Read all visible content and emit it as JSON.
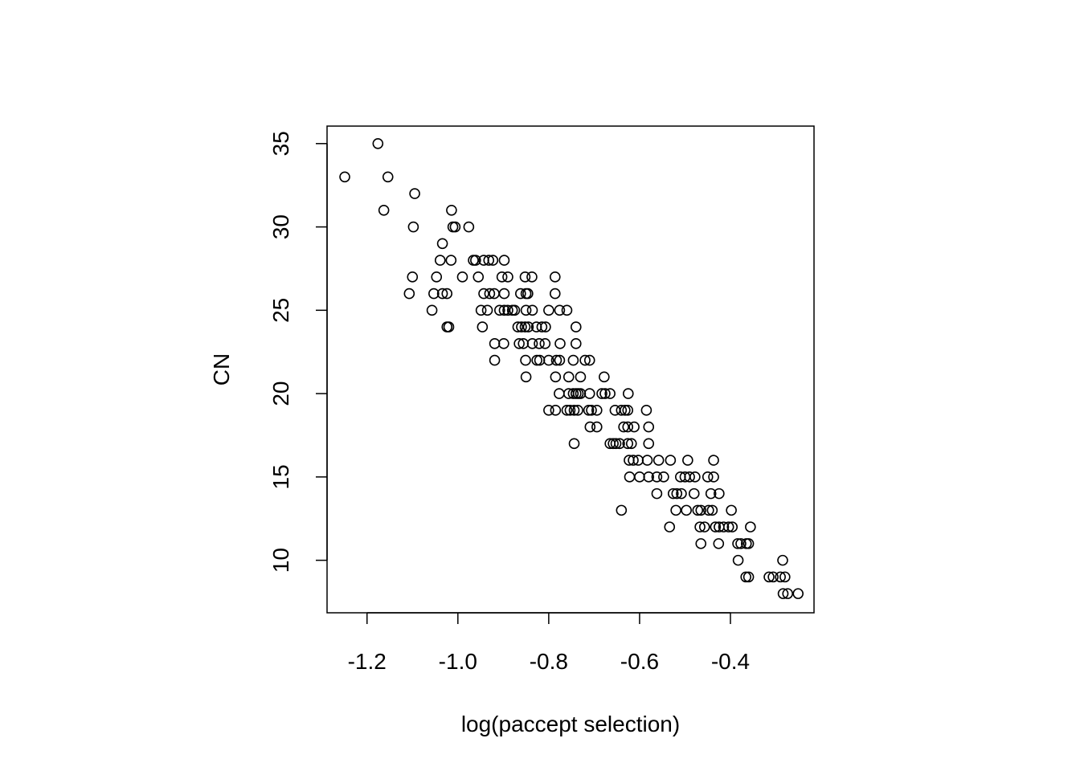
{
  "chart_data": {
    "type": "scatter",
    "title": "",
    "xlabel": "log(paccept selection)",
    "ylabel": "CN",
    "xlim": [
      -1.288,
      -0.216
    ],
    "ylim": [
      6.85,
      36.05
    ],
    "x_ticks": [
      -1.2,
      -1.0,
      -0.8,
      -0.6,
      -0.4
    ],
    "x_tick_labels": [
      "-1.2",
      "-1.0",
      "-0.8",
      "-0.6",
      "-0.4"
    ],
    "y_ticks": [
      10,
      15,
      20,
      25,
      30,
      35
    ],
    "y_tick_labels": [
      "10",
      "15",
      "20",
      "25",
      "30",
      "35"
    ],
    "grid": false,
    "marker": "open-circle",
    "marker_color": "#000000",
    "points": [
      [
        -1.249,
        33
      ],
      [
        -1.176,
        35
      ],
      [
        -1.163,
        31
      ],
      [
        -1.154,
        33
      ],
      [
        -1.095,
        32
      ],
      [
        -1.098,
        30
      ],
      [
        -1.014,
        31
      ],
      [
        -1.011,
        30
      ],
      [
        -1.006,
        30
      ],
      [
        -0.976,
        30
      ],
      [
        -1.034,
        29
      ],
      [
        -1.039,
        28
      ],
      [
        -1.015,
        28
      ],
      [
        -0.966,
        28
      ],
      [
        -0.961,
        28
      ],
      [
        -0.943,
        28
      ],
      [
        -0.932,
        28
      ],
      [
        -0.923,
        28
      ],
      [
        -0.898,
        28
      ],
      [
        -1.1,
        27
      ],
      [
        -1.047,
        27
      ],
      [
        -0.99,
        27
      ],
      [
        -0.955,
        27
      ],
      [
        -0.903,
        27
      ],
      [
        -0.89,
        27
      ],
      [
        -0.852,
        27
      ],
      [
        -0.837,
        27
      ],
      [
        -0.786,
        27
      ],
      [
        -1.107,
        26
      ],
      [
        -1.053,
        26
      ],
      [
        -1.034,
        26
      ],
      [
        -1.024,
        26
      ],
      [
        -0.943,
        26
      ],
      [
        -0.93,
        26
      ],
      [
        -0.92,
        26
      ],
      [
        -0.898,
        26
      ],
      [
        -0.862,
        26
      ],
      [
        -0.85,
        26
      ],
      [
        -0.846,
        26
      ],
      [
        -0.786,
        26
      ],
      [
        -1.057,
        25
      ],
      [
        -0.949,
        25
      ],
      [
        -0.935,
        25
      ],
      [
        -0.908,
        25
      ],
      [
        -0.898,
        25
      ],
      [
        -0.89,
        25
      ],
      [
        -0.88,
        25
      ],
      [
        -0.875,
        25
      ],
      [
        -0.85,
        25
      ],
      [
        -0.836,
        25
      ],
      [
        -0.8,
        25
      ],
      [
        -0.776,
        25
      ],
      [
        -0.76,
        25
      ],
      [
        -1.024,
        24
      ],
      [
        -1.02,
        24
      ],
      [
        -0.946,
        24
      ],
      [
        -0.868,
        24
      ],
      [
        -0.86,
        24
      ],
      [
        -0.852,
        24
      ],
      [
        -0.845,
        24
      ],
      [
        -0.827,
        24
      ],
      [
        -0.815,
        24
      ],
      [
        -0.807,
        24
      ],
      [
        -0.74,
        24
      ],
      [
        -0.919,
        23
      ],
      [
        -0.899,
        23
      ],
      [
        -0.865,
        23
      ],
      [
        -0.856,
        23
      ],
      [
        -0.836,
        23
      ],
      [
        -0.821,
        23
      ],
      [
        -0.808,
        23
      ],
      [
        -0.775,
        23
      ],
      [
        -0.74,
        23
      ],
      [
        -0.919,
        22
      ],
      [
        -0.851,
        22
      ],
      [
        -0.826,
        22
      ],
      [
        -0.82,
        22
      ],
      [
        -0.8,
        22
      ],
      [
        -0.783,
        22
      ],
      [
        -0.776,
        22
      ],
      [
        -0.746,
        22
      ],
      [
        -0.72,
        22
      ],
      [
        -0.71,
        22
      ],
      [
        -0.85,
        21
      ],
      [
        -0.785,
        21
      ],
      [
        -0.756,
        21
      ],
      [
        -0.73,
        21
      ],
      [
        -0.678,
        21
      ],
      [
        -0.777,
        20
      ],
      [
        -0.756,
        20
      ],
      [
        -0.746,
        20
      ],
      [
        -0.74,
        20
      ],
      [
        -0.735,
        20
      ],
      [
        -0.73,
        20
      ],
      [
        -0.71,
        20
      ],
      [
        -0.683,
        20
      ],
      [
        -0.676,
        20
      ],
      [
        -0.665,
        20
      ],
      [
        -0.625,
        20
      ],
      [
        -0.8,
        19
      ],
      [
        -0.785,
        19
      ],
      [
        -0.76,
        19
      ],
      [
        -0.753,
        19
      ],
      [
        -0.744,
        19
      ],
      [
        -0.736,
        19
      ],
      [
        -0.712,
        19
      ],
      [
        -0.706,
        19
      ],
      [
        -0.694,
        19
      ],
      [
        -0.654,
        19
      ],
      [
        -0.64,
        19
      ],
      [
        -0.632,
        19
      ],
      [
        -0.626,
        19
      ],
      [
        -0.585,
        19
      ],
      [
        -0.709,
        18
      ],
      [
        -0.694,
        18
      ],
      [
        -0.635,
        18
      ],
      [
        -0.626,
        18
      ],
      [
        -0.612,
        18
      ],
      [
        -0.58,
        18
      ],
      [
        -0.744,
        17
      ],
      [
        -0.665,
        17
      ],
      [
        -0.658,
        17
      ],
      [
        -0.652,
        17
      ],
      [
        -0.644,
        17
      ],
      [
        -0.626,
        17
      ],
      [
        -0.618,
        17
      ],
      [
        -0.58,
        17
      ],
      [
        -0.623,
        16
      ],
      [
        -0.614,
        16
      ],
      [
        -0.603,
        16
      ],
      [
        -0.583,
        16
      ],
      [
        -0.558,
        16
      ],
      [
        -0.532,
        16
      ],
      [
        -0.494,
        16
      ],
      [
        -0.437,
        16
      ],
      [
        -0.622,
        15
      ],
      [
        -0.6,
        15
      ],
      [
        -0.58,
        15
      ],
      [
        -0.562,
        15
      ],
      [
        -0.547,
        15
      ],
      [
        -0.51,
        15
      ],
      [
        -0.5,
        15
      ],
      [
        -0.49,
        15
      ],
      [
        -0.478,
        15
      ],
      [
        -0.45,
        15
      ],
      [
        -0.437,
        15
      ],
      [
        -0.562,
        14
      ],
      [
        -0.526,
        14
      ],
      [
        -0.518,
        14
      ],
      [
        -0.508,
        14
      ],
      [
        -0.48,
        14
      ],
      [
        -0.443,
        14
      ],
      [
        -0.425,
        14
      ],
      [
        -0.64,
        13
      ],
      [
        -0.52,
        13
      ],
      [
        -0.497,
        13
      ],
      [
        -0.472,
        13
      ],
      [
        -0.465,
        13
      ],
      [
        -0.448,
        13
      ],
      [
        -0.44,
        13
      ],
      [
        -0.398,
        13
      ],
      [
        -0.534,
        12
      ],
      [
        -0.467,
        12
      ],
      [
        -0.457,
        12
      ],
      [
        -0.433,
        12
      ],
      [
        -0.425,
        12
      ],
      [
        -0.415,
        12
      ],
      [
        -0.404,
        12
      ],
      [
        -0.396,
        12
      ],
      [
        -0.356,
        12
      ],
      [
        -0.465,
        11
      ],
      [
        -0.426,
        11
      ],
      [
        -0.384,
        11
      ],
      [
        -0.377,
        11
      ],
      [
        -0.365,
        11
      ],
      [
        -0.36,
        11
      ],
      [
        -0.383,
        10
      ],
      [
        -0.285,
        10
      ],
      [
        -0.366,
        9
      ],
      [
        -0.36,
        9
      ],
      [
        -0.315,
        9
      ],
      [
        -0.306,
        9
      ],
      [
        -0.29,
        9
      ],
      [
        -0.28,
        9
      ],
      [
        -0.284,
        8
      ],
      [
        -0.274,
        8
      ],
      [
        -0.251,
        8
      ]
    ]
  }
}
